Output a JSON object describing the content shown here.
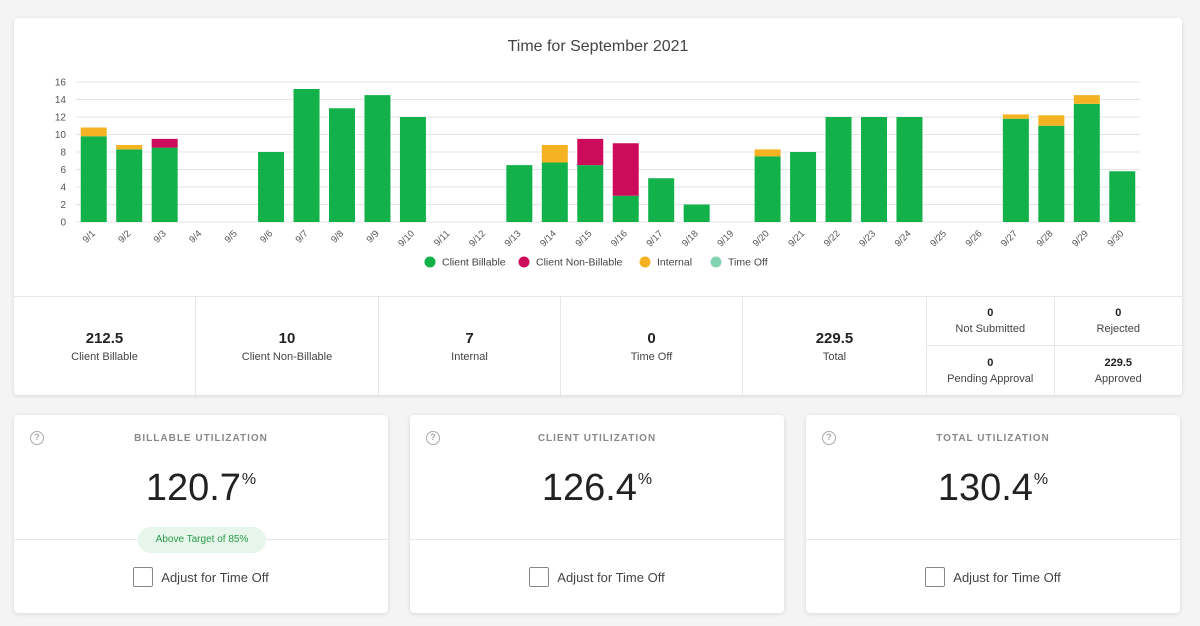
{
  "chart": {
    "title": "Time for September 2021",
    "legend": [
      {
        "label": "Client Billable",
        "color": "#13b14a"
      },
      {
        "label": "Client Non-Billable",
        "color": "#cc0c5a"
      },
      {
        "label": "Internal",
        "color": "#f5b323"
      },
      {
        "label": "Time Off",
        "color": "#84d3b1"
      }
    ]
  },
  "chart_data": {
    "type": "bar",
    "stacked": true,
    "title": "Time for September 2021",
    "categories": [
      "9/1",
      "9/2",
      "9/3",
      "9/4",
      "9/5",
      "9/6",
      "9/7",
      "9/8",
      "9/9",
      "9/10",
      "9/11",
      "9/12",
      "9/13",
      "9/14",
      "9/15",
      "9/16",
      "9/17",
      "9/18",
      "9/19",
      "9/20",
      "9/21",
      "9/22",
      "9/23",
      "9/24",
      "9/25",
      "9/26",
      "9/27",
      "9/28",
      "9/29",
      "9/30"
    ],
    "series": [
      {
        "name": "Client Billable",
        "color": "#13b14a",
        "values": [
          9.8,
          8.3,
          8.5,
          0,
          0,
          8,
          15.2,
          13,
          14.5,
          12,
          0,
          0,
          6.5,
          6.8,
          6.5,
          3,
          5,
          2,
          0,
          7.5,
          8,
          12,
          12,
          12,
          0,
          0,
          11.8,
          11,
          13.5,
          5.8
        ]
      },
      {
        "name": "Client Non-Billable",
        "color": "#cc0c5a",
        "values": [
          0,
          0,
          1,
          0,
          0,
          0,
          0,
          0,
          0,
          0,
          0,
          0,
          0,
          0,
          3,
          6,
          0,
          0,
          0,
          0,
          0,
          0,
          0,
          0,
          0,
          0,
          0,
          0,
          0,
          0
        ]
      },
      {
        "name": "Internal",
        "color": "#f5b323",
        "values": [
          1,
          0.5,
          0,
          0,
          0,
          0,
          0,
          0,
          0,
          0,
          0,
          0,
          0,
          2,
          0,
          0,
          0,
          0,
          0,
          0.8,
          0,
          0,
          0,
          0,
          0,
          0,
          0.5,
          1.2,
          1,
          0
        ]
      },
      {
        "name": "Time Off",
        "color": "#84d3b1",
        "values": [
          0,
          0,
          0,
          0,
          0,
          0,
          0,
          0,
          0,
          0,
          0,
          0,
          0,
          0,
          0,
          0,
          0,
          0,
          0,
          0,
          0,
          0,
          0,
          0,
          0,
          0,
          0,
          0,
          0,
          0
        ]
      }
    ],
    "yticks": [
      0,
      2,
      4,
      6,
      8,
      10,
      12,
      14,
      16
    ],
    "ylim": [
      0,
      16
    ],
    "grid": true,
    "legend_position": "bottom"
  },
  "summary": {
    "client_billable": {
      "value": "212.5",
      "label": "Client Billable"
    },
    "client_non_billable": {
      "value": "10",
      "label": "Client Non-Billable"
    },
    "internal": {
      "value": "7",
      "label": "Internal"
    },
    "time_off": {
      "value": "0",
      "label": "Time Off"
    },
    "total": {
      "value": "229.5",
      "label": "Total"
    },
    "not_submitted": {
      "value": "0",
      "label": "Not Submitted"
    },
    "rejected": {
      "value": "0",
      "label": "Rejected"
    },
    "pending_approval": {
      "value": "0",
      "label": "Pending Approval"
    },
    "approved": {
      "value": "229.5",
      "label": "Approved"
    }
  },
  "utilization": [
    {
      "title": "BILLABLE UTILIZATION",
      "value": "120.7",
      "unit": "%",
      "badge": "Above Target of 85%",
      "adjust_label": "Adjust for Time Off"
    },
    {
      "title": "CLIENT UTILIZATION",
      "value": "126.4",
      "unit": "%",
      "adjust_label": "Adjust for Time Off"
    },
    {
      "title": "TOTAL UTILIZATION",
      "value": "130.4",
      "unit": "%",
      "adjust_label": "Adjust for Time Off"
    }
  ],
  "help_icon": "question-circle-icon"
}
